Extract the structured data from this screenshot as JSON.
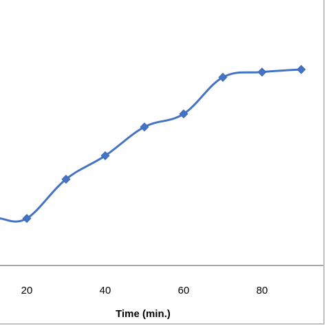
{
  "chart_data": {
    "type": "line",
    "xlabel": "Time (min.)",
    "ylabel": "",
    "x_ticks": [
      20,
      40,
      60,
      80
    ],
    "xlim": [
      0,
      95
    ],
    "ylim": [
      0,
      100
    ],
    "series": [
      {
        "marker": "diamond",
        "color": "#4472c4",
        "x": [
          20,
          30,
          40,
          50,
          60,
          70,
          80,
          90
        ],
        "y": [
          18,
          33,
          42,
          53,
          58,
          72,
          74,
          75
        ]
      }
    ],
    "leading_segment_y": 18,
    "grid": false,
    "legend": "none"
  }
}
